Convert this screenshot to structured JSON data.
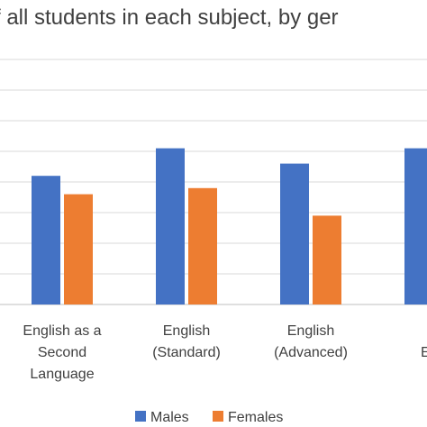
{
  "chart_data": {
    "type": "bar",
    "title": "f all students in each subject, by ger",
    "categories": [
      [
        "English as a",
        "Second",
        "Language"
      ],
      [
        "English",
        "(Standard)"
      ],
      [
        "English",
        "(Advanced)"
      ],
      [
        "E",
        "Exte"
      ]
    ],
    "series": [
      {
        "name": "Males",
        "color": "#4472C4",
        "values": [
          4.2,
          5.1,
          4.6,
          5.1
        ]
      },
      {
        "name": "Females",
        "color": "#ED7D31",
        "values": [
          3.6,
          3.8,
          2.9,
          null
        ]
      }
    ],
    "ylim": [
      0,
      8
    ],
    "grid": true,
    "legend_position": "bottom"
  }
}
